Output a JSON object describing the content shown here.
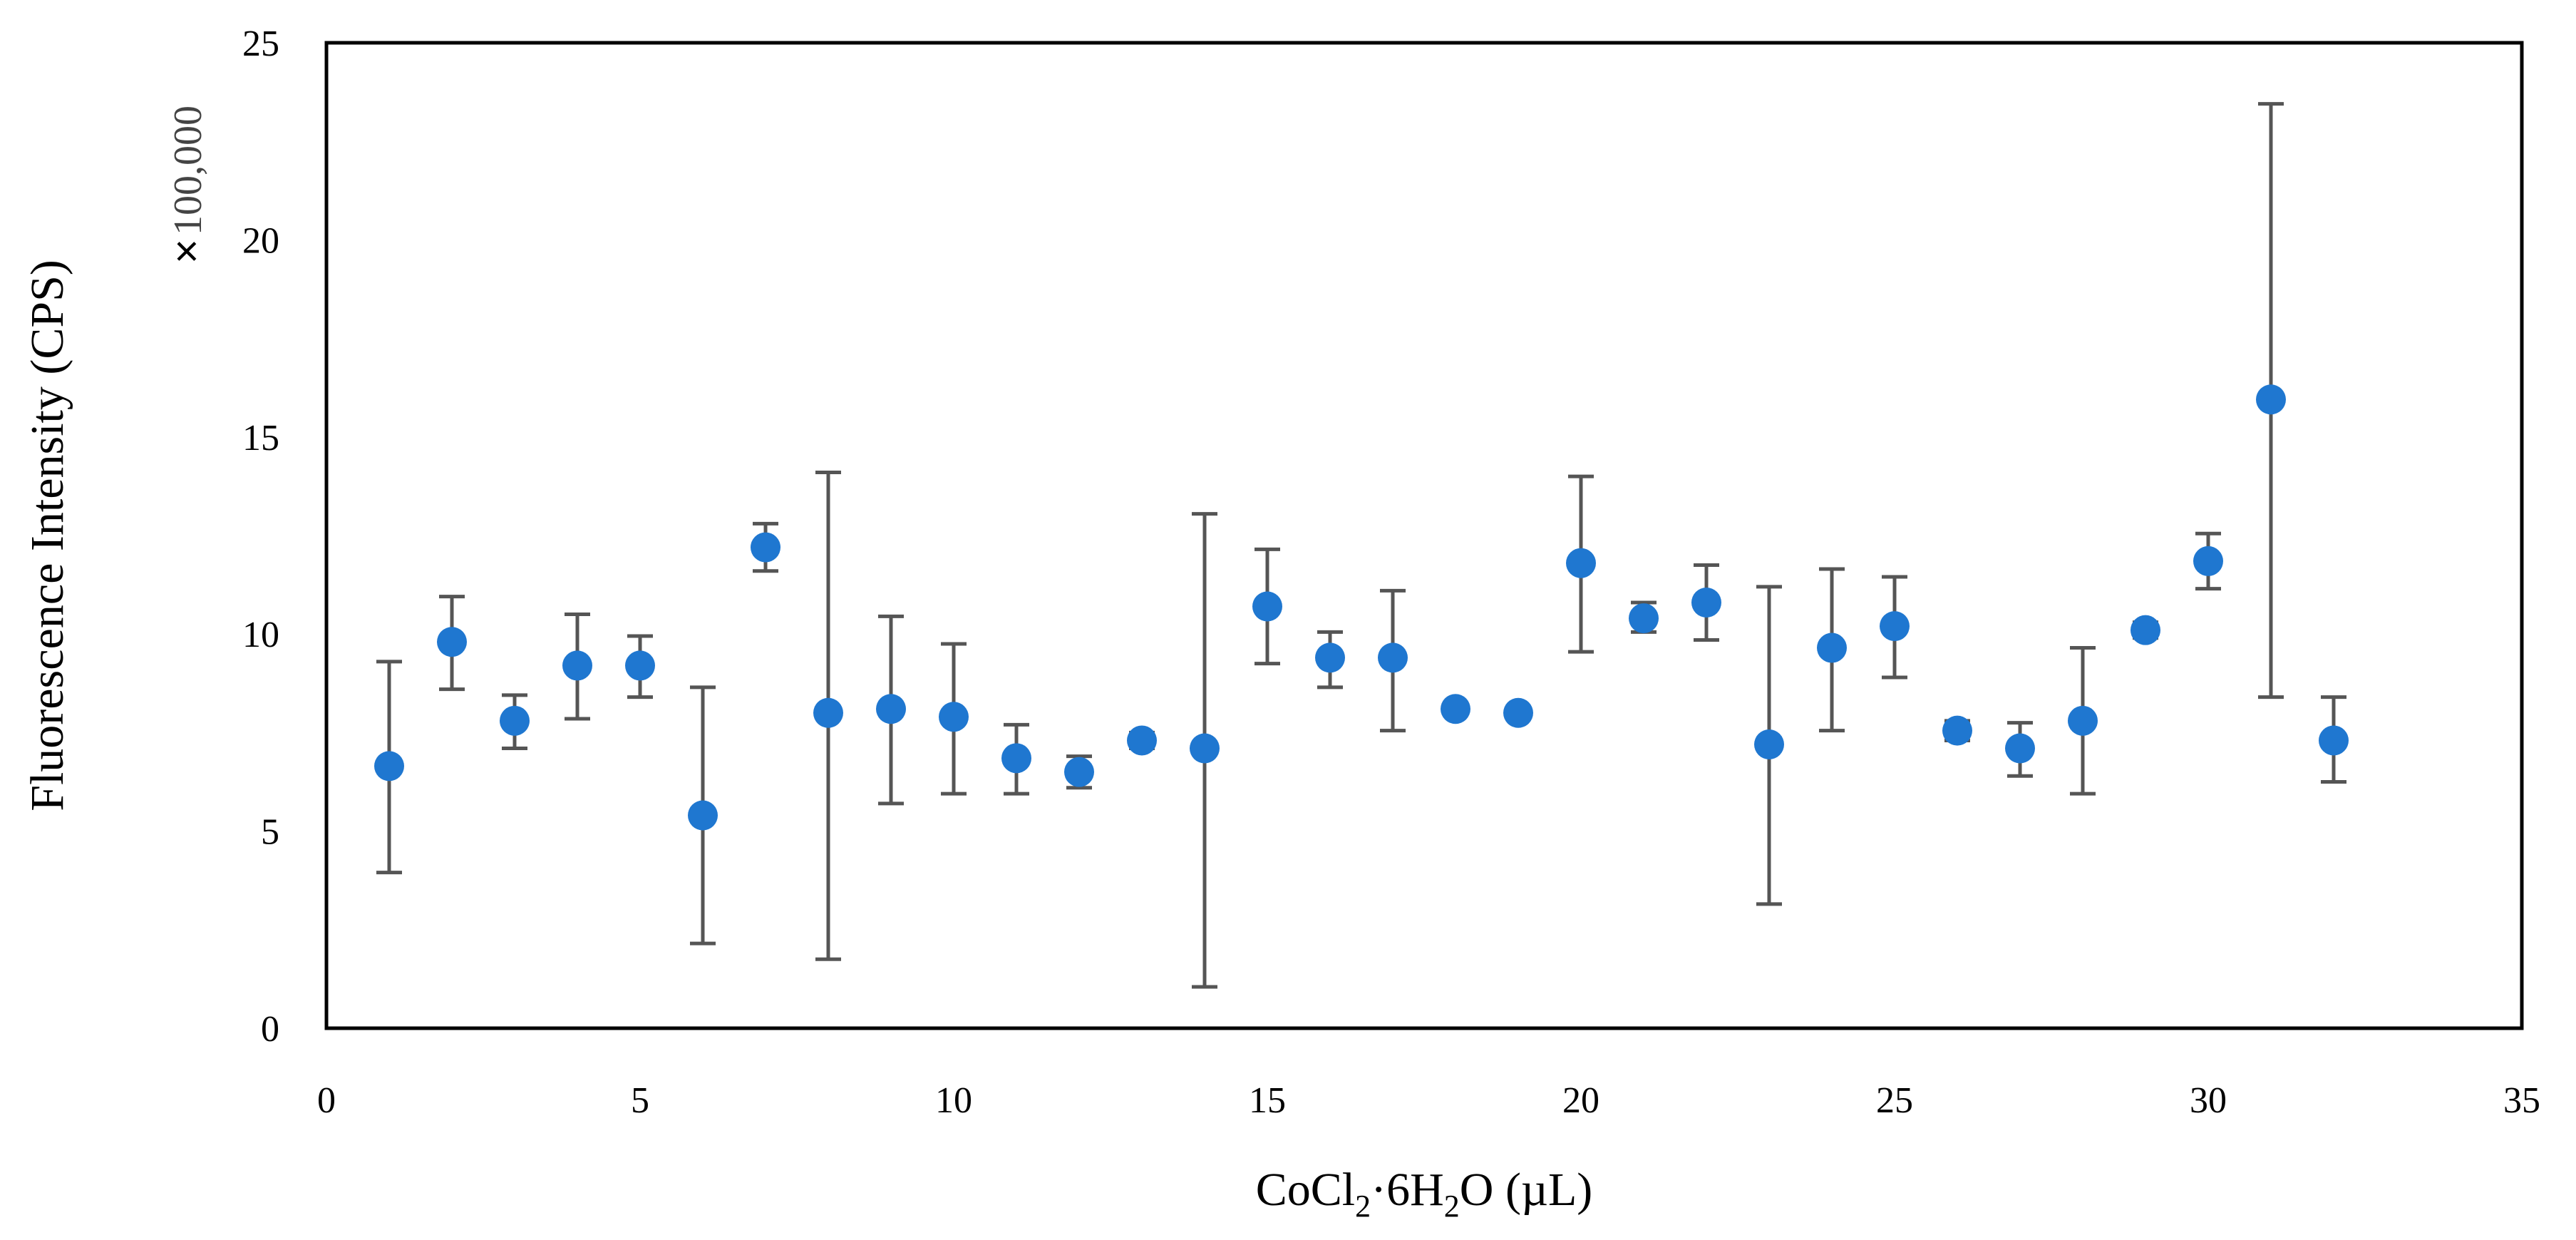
{
  "chart_data": {
    "type": "scatter",
    "title": "",
    "xlabel": "CoCl",
    "xlabel_sub1": "2",
    "xlabel_mid": "·6H",
    "xlabel_sub2": "2",
    "xlabel_end": "O (µL)",
    "ylabel": "Fluorescence Intensity (CPS)",
    "y_multiplier_symbol": "×",
    "y_multiplier_value": "100,000",
    "xlim": [
      0,
      35
    ],
    "ylim": [
      0,
      25
    ],
    "x_ticks": [
      0,
      5,
      10,
      15,
      20,
      25,
      30,
      35
    ],
    "y_ticks": [
      0,
      5,
      10,
      15,
      20,
      25
    ],
    "grid": false,
    "legend": "none",
    "colors": {
      "marker": "#1f77d0",
      "error_bar": "#555555",
      "frame": "#000000"
    },
    "series": [
      {
        "name": "Fluorescence intensity",
        "x": [
          1,
          2,
          3,
          4,
          5,
          6,
          7,
          8,
          9,
          10,
          11,
          12,
          13,
          14,
          15,
          16,
          17,
          18,
          19,
          20,
          21,
          22,
          23,
          24,
          25,
          26,
          27,
          28,
          29,
          30,
          31,
          32
        ],
        "y": [
          6.65,
          9.8,
          7.8,
          9.2,
          9.2,
          5.4,
          12.2,
          8.0,
          8.1,
          7.9,
          6.85,
          6.5,
          7.3,
          7.1,
          10.7,
          9.4,
          9.4,
          8.1,
          8.0,
          11.8,
          10.4,
          10.8,
          7.2,
          9.65,
          10.2,
          7.55,
          7.1,
          7.8,
          10.1,
          11.85,
          15.95,
          7.3
        ],
        "err_low": [
          3.95,
          8.6,
          7.1,
          7.85,
          8.4,
          2.15,
          11.6,
          1.75,
          5.7,
          5.95,
          5.95,
          6.1,
          7.1,
          1.05,
          9.25,
          8.65,
          7.55,
          7.95,
          7.85,
          9.55,
          10.05,
          9.85,
          3.15,
          7.55,
          8.9,
          7.3,
          6.4,
          5.95,
          9.9,
          11.15,
          8.4,
          6.25
        ],
        "err_high": [
          9.3,
          10.95,
          8.45,
          10.5,
          9.95,
          8.65,
          12.8,
          14.1,
          10.45,
          9.75,
          7.7,
          6.9,
          7.5,
          13.05,
          12.15,
          10.05,
          11.1,
          8.25,
          8.15,
          14.0,
          10.8,
          11.75,
          11.2,
          11.65,
          11.45,
          7.8,
          7.75,
          9.65,
          10.3,
          12.55,
          23.45,
          8.4
        ]
      }
    ]
  }
}
